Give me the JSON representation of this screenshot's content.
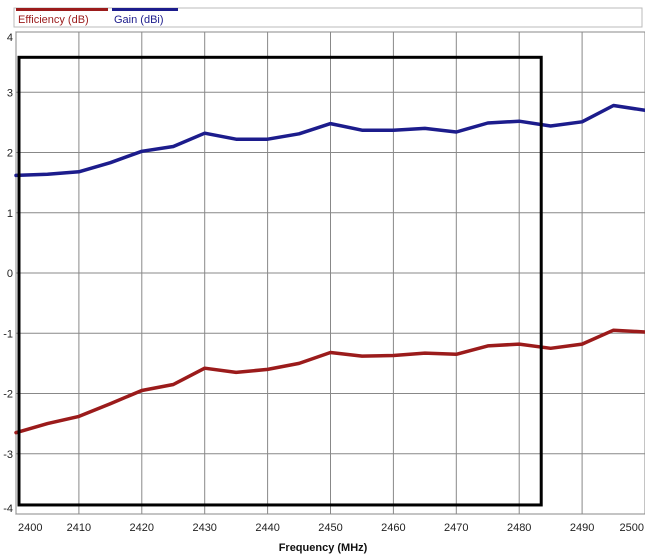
{
  "chart_data": {
    "type": "line",
    "xlabel": "Frequency  (MHz)",
    "ylabel": "",
    "xlim": [
      2400,
      2500
    ],
    "ylim": [
      -4,
      4
    ],
    "x_ticks": [
      2400,
      2410,
      2420,
      2430,
      2440,
      2450,
      2460,
      2470,
      2480,
      2490,
      2500
    ],
    "y_ticks": [
      4,
      3,
      2,
      1,
      0,
      -1,
      -2,
      -3,
      -4
    ],
    "grid": true,
    "legend_position": "top-left",
    "series": [
      {
        "name": "Efficiency (dB)",
        "color": "#9b1b1b",
        "x": [
          2400,
          2405,
          2410,
          2415,
          2420,
          2425,
          2430,
          2435,
          2440,
          2445,
          2450,
          2455,
          2460,
          2465,
          2470,
          2475,
          2480,
          2485,
          2490,
          2495,
          2500
        ],
        "y": [
          -2.65,
          -2.5,
          -2.38,
          -2.17,
          -1.95,
          -1.85,
          -1.58,
          -1.65,
          -1.6,
          -1.5,
          -1.32,
          -1.38,
          -1.37,
          -1.33,
          -1.35,
          -1.21,
          -1.18,
          -1.25,
          -1.18,
          -0.95,
          -0.98
        ]
      },
      {
        "name": "Gain (dBi)",
        "color": "#1c1c8c",
        "x": [
          2400,
          2405,
          2410,
          2415,
          2420,
          2425,
          2430,
          2435,
          2440,
          2445,
          2450,
          2455,
          2460,
          2465,
          2470,
          2475,
          2480,
          2485,
          2490,
          2495,
          2500
        ],
        "y": [
          1.62,
          1.64,
          1.68,
          1.83,
          2.02,
          2.1,
          2.32,
          2.22,
          2.22,
          2.31,
          2.48,
          2.37,
          2.37,
          2.4,
          2.34,
          2.49,
          2.52,
          2.44,
          2.51,
          2.78,
          2.7
        ]
      }
    ],
    "annotations": [
      {
        "type": "rectangle",
        "x_range": [
          2400,
          2483.5
        ],
        "y_range": [
          -3.85,
          3.58
        ],
        "color": "#000000"
      }
    ]
  }
}
